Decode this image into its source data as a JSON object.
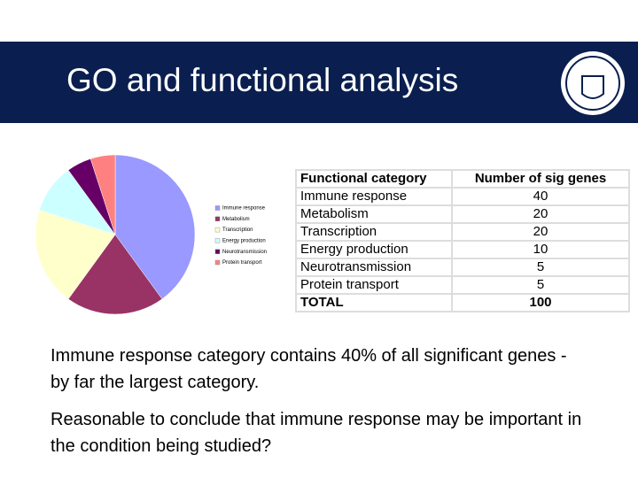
{
  "header": {
    "title": "GO and functional analysis"
  },
  "chart_data": {
    "type": "pie",
    "categories": [
      "Immune response",
      "Metabolism",
      "Transcription",
      "Energy production",
      "Neurotransmission",
      "Protein transport"
    ],
    "values": [
      40,
      20,
      20,
      10,
      5,
      5
    ],
    "colors": [
      "#9999ff",
      "#993366",
      "#ffffcc",
      "#ccffff",
      "#660066",
      "#ff8080"
    ]
  },
  "table": {
    "header": [
      "Functional category",
      "Number of sig genes"
    ],
    "rows": [
      [
        "Immune response",
        "40"
      ],
      [
        "Metabolism",
        "20"
      ],
      [
        "Transcription",
        "20"
      ],
      [
        "Energy production",
        "10"
      ],
      [
        "Neurotransmission",
        "5"
      ],
      [
        "Protein transport",
        "5"
      ],
      [
        "TOTAL",
        "100"
      ]
    ]
  },
  "paragraphs": [
    "Immune response category contains 40% of all significant genes - by far the largest category.",
    "Reasonable to conclude that immune response may be important in the condition being studied?"
  ]
}
